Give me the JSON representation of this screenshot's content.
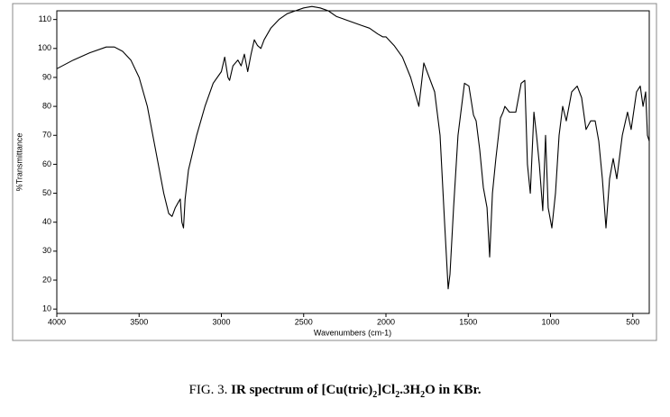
{
  "chart_data": {
    "type": "line",
    "x_label": "Wavenumbers (cm-1)",
    "y_label": "%Transmittance",
    "xlim": [
      4000,
      400
    ],
    "ylim": [
      8.5,
      113
    ],
    "xticks": [
      4000,
      3500,
      3000,
      2500,
      2000,
      1500,
      1000,
      500
    ],
    "yticks": [
      10,
      20,
      30,
      40,
      50,
      60,
      70,
      80,
      90,
      100,
      110
    ],
    "series": [
      {
        "color": "#000000",
        "x": [
          4000,
          3900,
          3800,
          3700,
          3650,
          3600,
          3550,
          3500,
          3450,
          3400,
          3350,
          3320,
          3300,
          3280,
          3260,
          3250,
          3240,
          3230,
          3220,
          3200,
          3150,
          3100,
          3050,
          3000,
          2980,
          2960,
          2950,
          2930,
          2900,
          2880,
          2860,
          2840,
          2820,
          2800,
          2780,
          2760,
          2740,
          2700,
          2650,
          2600,
          2550,
          2500,
          2450,
          2400,
          2350,
          2300,
          2250,
          2200,
          2150,
          2100,
          2050,
          2020,
          2000,
          1950,
          1900,
          1850,
          1800,
          1770,
          1704,
          1671,
          1644,
          1622,
          1611,
          1589,
          1562,
          1540,
          1523,
          1496,
          1468,
          1452,
          1430,
          1408,
          1386,
          1370,
          1353,
          1332,
          1304,
          1288,
          1277,
          1250,
          1211,
          1178,
          1156,
          1140,
          1123,
          1101,
          1085,
          1068,
          1047,
          1030,
          1014,
          992,
          970,
          948,
          926,
          904,
          871,
          838,
          811,
          784,
          756,
          729,
          707,
          685,
          663,
          641,
          619,
          597,
          564,
          532,
          510,
          477,
          455,
          438,
          422,
          411,
          400
        ],
        "values": [
          93,
          96,
          98.5,
          100.5,
          100.5,
          99,
          96,
          90,
          80,
          65,
          50,
          43,
          42,
          45,
          47,
          48,
          40,
          38,
          48,
          58,
          70,
          80,
          88,
          92,
          97,
          90,
          89,
          94,
          96,
          94,
          98,
          92,
          98,
          103,
          101,
          100,
          103,
          107,
          110,
          112,
          113,
          114,
          114.5,
          114,
          113,
          111,
          110,
          109,
          108,
          107,
          105,
          104,
          104,
          101,
          97,
          90,
          80,
          95,
          85,
          70,
          40,
          17,
          22,
          45,
          70,
          80,
          88,
          87,
          77,
          75,
          65,
          52,
          45,
          28,
          50,
          62,
          76,
          78,
          80,
          78,
          78,
          88,
          89,
          60,
          50,
          78,
          70,
          60,
          44,
          70,
          45,
          38,
          50,
          70,
          80,
          75,
          85,
          87,
          83,
          72,
          75,
          75,
          68,
          55,
          38,
          55,
          62,
          55,
          70,
          78,
          72,
          85,
          87,
          80,
          85,
          70,
          68
        ]
      }
    ],
    "caption": [
      "FIG. 3.",
      "IR spectrum of [Cu(tric)",
      "2",
      "]Cl",
      "2",
      ".3H",
      "2",
      "O in KBr."
    ]
  }
}
